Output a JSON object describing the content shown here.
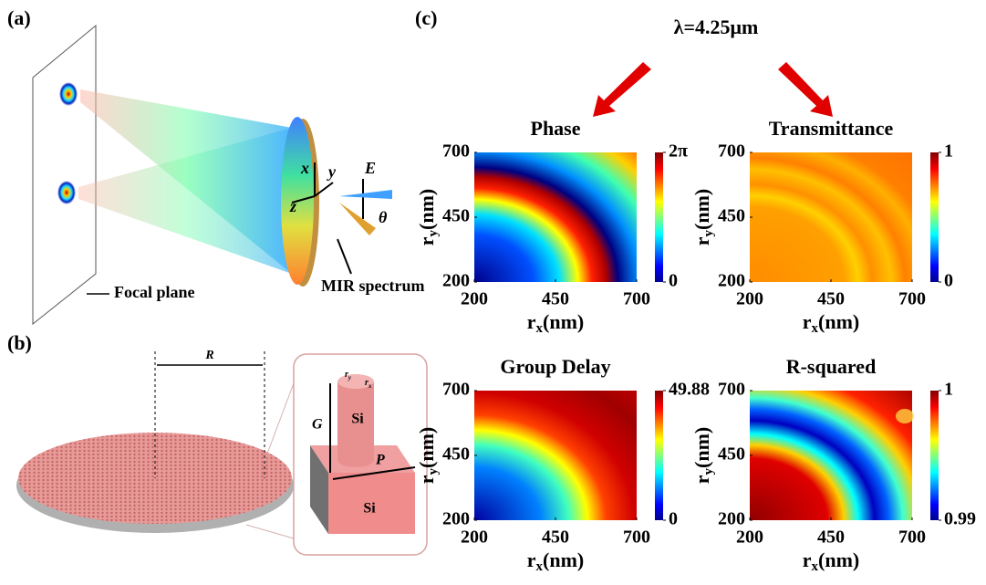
{
  "panel_a": {
    "label": "(a)",
    "focal_plane": "Focal plane",
    "spectrum": "MIR spectrum",
    "axis_x": "x",
    "axis_y": "y",
    "axis_z": "z",
    "field": "E",
    "angle": "θ"
  },
  "panel_b": {
    "label": "(b)",
    "radius": "R",
    "height": "G",
    "period": "P",
    "pillar": "Si",
    "base": "Si",
    "ry": {
      "base": "r",
      "sub": "y"
    },
    "rx": {
      "base": "r",
      "sub": "x"
    }
  },
  "panel_c": {
    "label": "(c)",
    "wavelength": "λ=4.25μm",
    "x_label": {
      "base": "r",
      "sub": "x",
      "unit": "(nm)"
    },
    "y_label": {
      "base": "r",
      "sub": "y",
      "unit": "(nm)"
    },
    "maps": [
      {
        "title": "Phase",
        "xticks": [
          200,
          450,
          700
        ],
        "yticks": [
          200,
          450,
          700
        ],
        "colorbar_ticks": [
          0,
          {
            "value": 6.283,
            "label": "2π"
          }
        ]
      },
      {
        "title": "Transmittance",
        "xticks": [
          200,
          450,
          700
        ],
        "yticks": [
          200,
          450,
          700
        ],
        "colorbar_ticks": [
          0,
          1
        ]
      },
      {
        "title": "Group Delay",
        "xticks": [
          200,
          450,
          700
        ],
        "yticks": [
          200,
          450,
          700
        ],
        "colorbar_ticks": [
          0,
          49.88
        ]
      },
      {
        "title": "R-squared",
        "xticks": [
          200,
          450,
          700
        ],
        "yticks": [
          200,
          450,
          700
        ],
        "colorbar_ticks": [
          0.99,
          1
        ]
      }
    ]
  }
}
